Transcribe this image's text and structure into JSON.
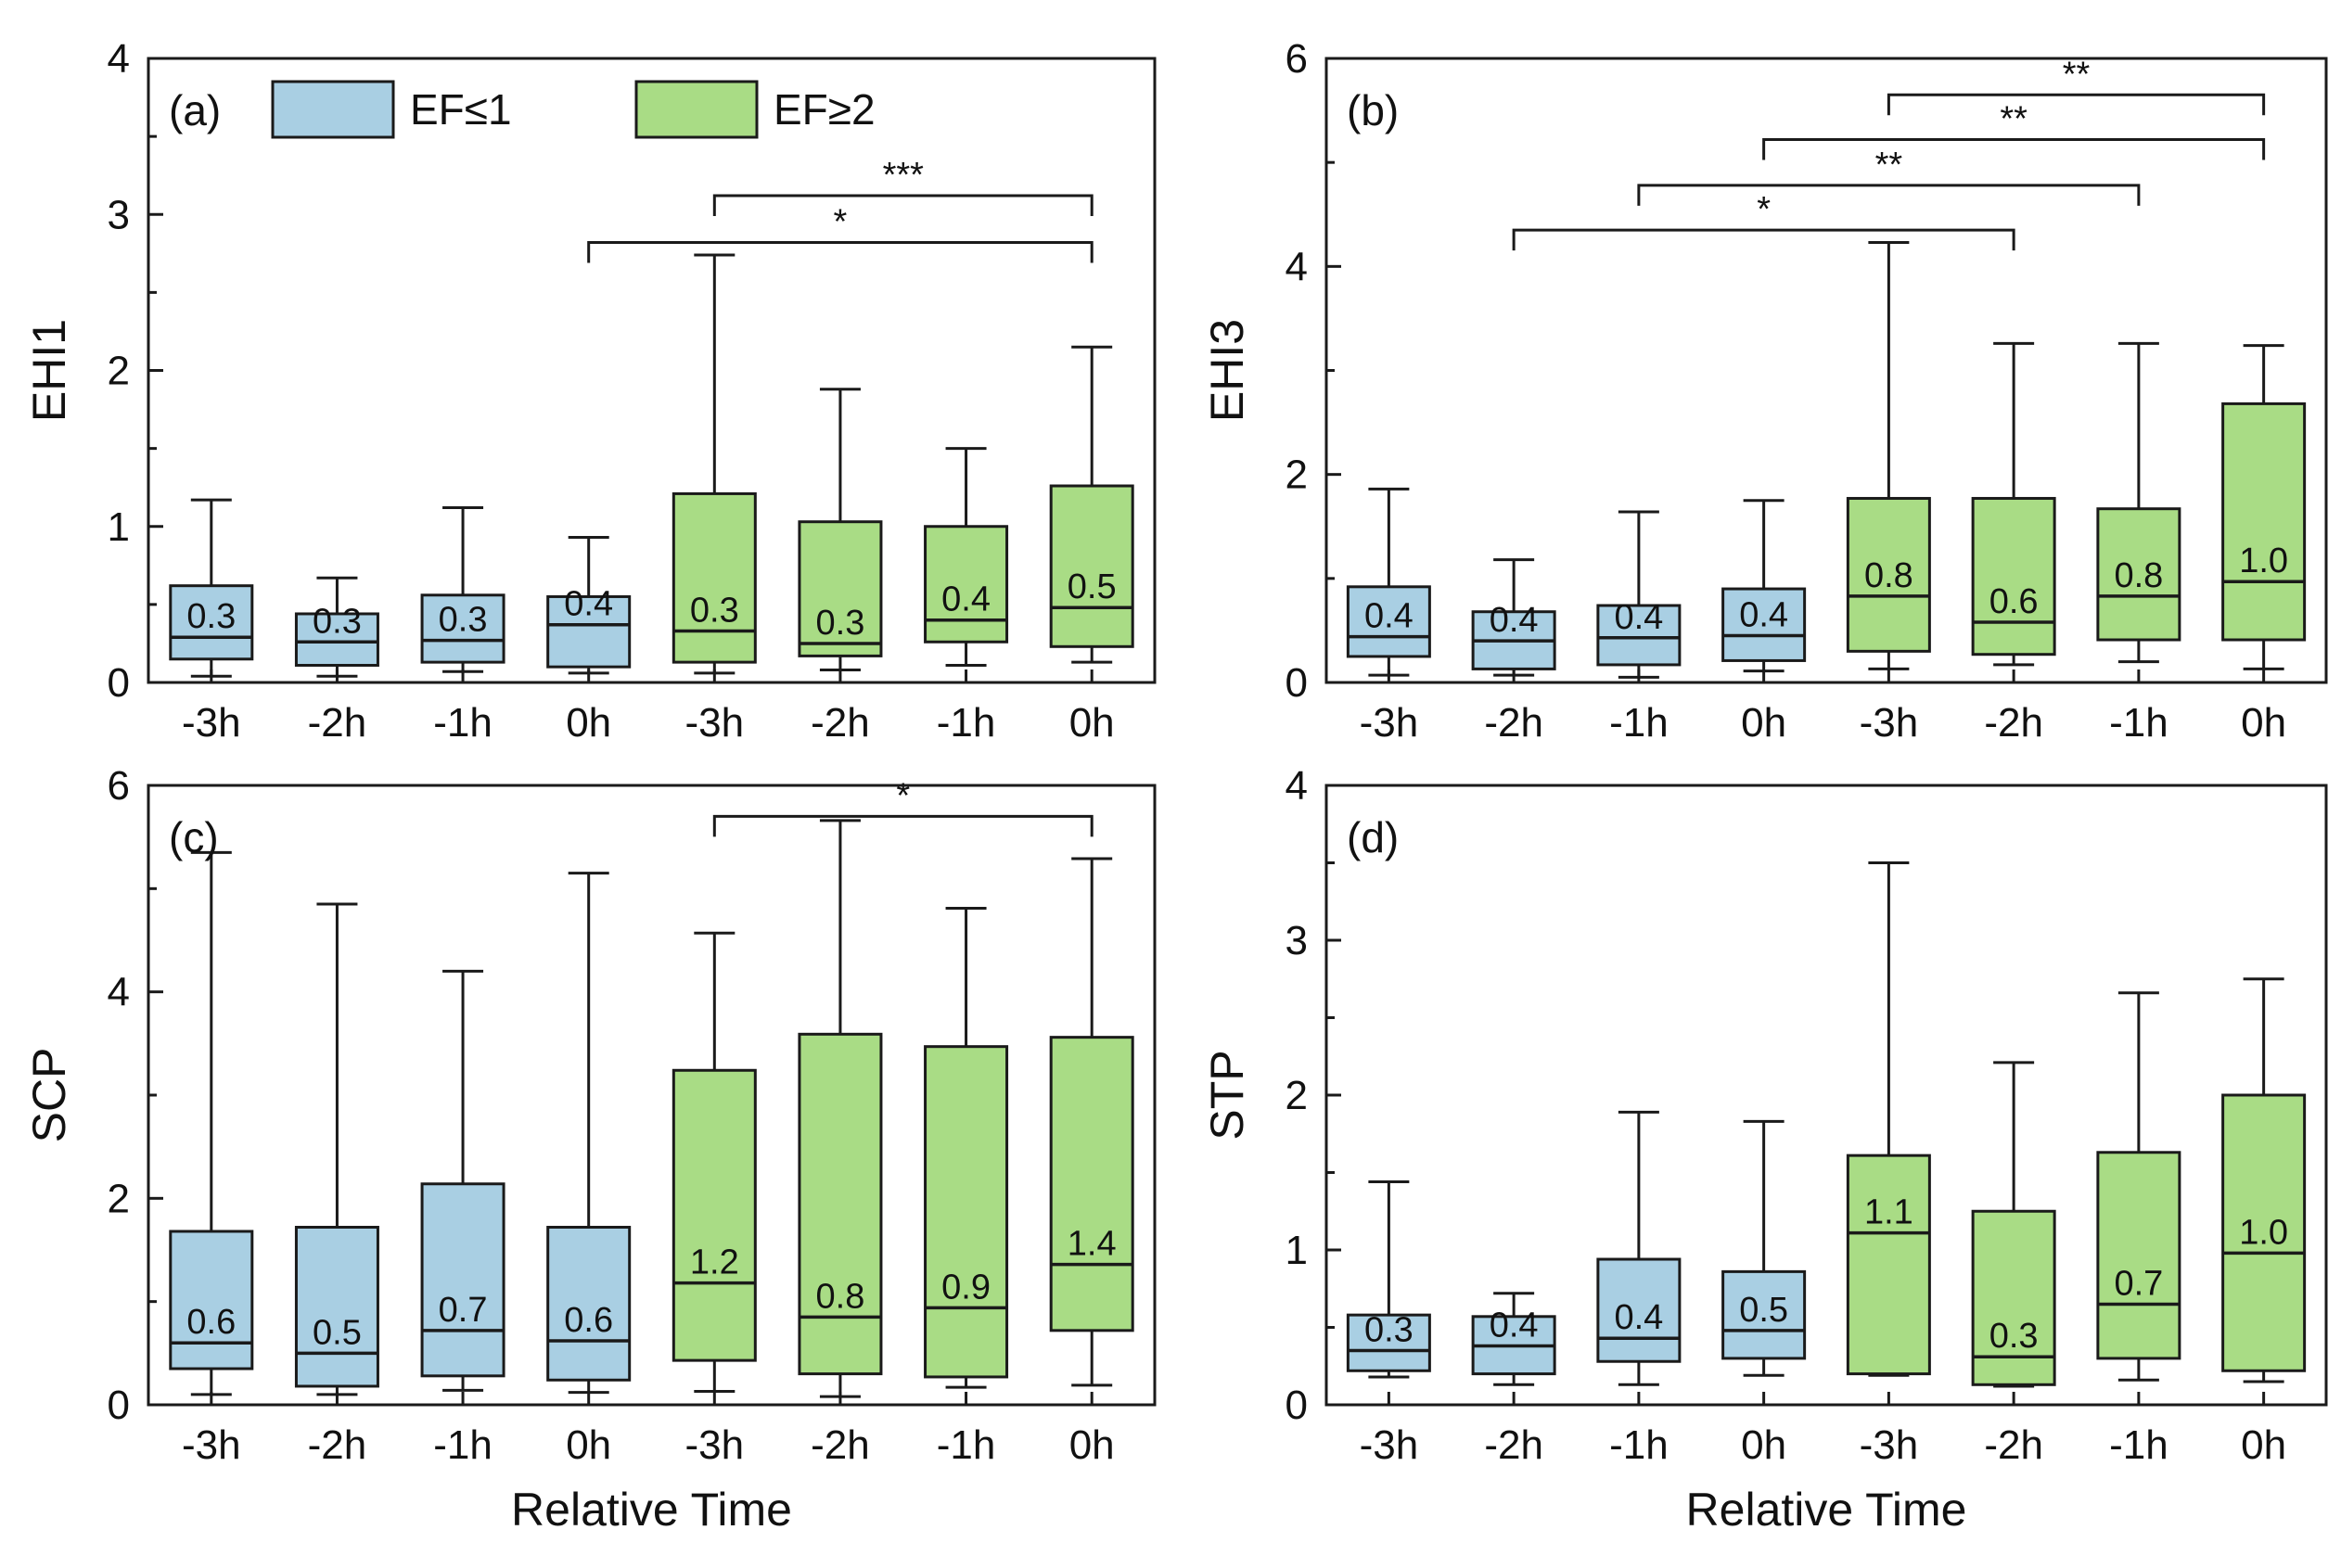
{
  "colors": {
    "ef_le1": "#a9cfe3",
    "ef_ge2": "#a9dc85",
    "stroke": "#1a1a1a"
  },
  "legend": {
    "ef_le1": "EF≤1",
    "ef_ge2": "EF≥2"
  },
  "chart_data": [
    {
      "type": "box",
      "panel_label": "(a)",
      "ylabel": "EHI1",
      "xlabel": "",
      "ylim": [
        0,
        4
      ],
      "yticks": [
        0,
        1,
        2,
        3,
        4
      ],
      "categories": [
        "-3h",
        "-2h",
        "-1h",
        "0h",
        "-3h",
        "-2h",
        "-1h",
        "0h"
      ],
      "groups": [
        "EF≤1",
        "EF≤1",
        "EF≤1",
        "EF≤1",
        "EF≥2",
        "EF≥2",
        "EF≥2",
        "EF≥2"
      ],
      "boxes": [
        {
          "min": 0.04,
          "q1": 0.15,
          "median": 0.29,
          "q3": 0.62,
          "max": 1.17,
          "label": "0.3"
        },
        {
          "min": 0.04,
          "q1": 0.11,
          "median": 0.26,
          "q3": 0.44,
          "max": 0.67,
          "label": "0.3"
        },
        {
          "min": 0.07,
          "q1": 0.13,
          "median": 0.27,
          "q3": 0.56,
          "max": 1.12,
          "label": "0.3"
        },
        {
          "min": 0.06,
          "q1": 0.1,
          "median": 0.37,
          "q3": 0.55,
          "max": 0.93,
          "label": "0.4"
        },
        {
          "min": 0.06,
          "q1": 0.13,
          "median": 0.33,
          "q3": 1.21,
          "max": 2.74,
          "label": "0.3"
        },
        {
          "min": 0.08,
          "q1": 0.17,
          "median": 0.25,
          "q3": 1.03,
          "max": 1.88,
          "label": "0.3"
        },
        {
          "min": 0.11,
          "q1": 0.26,
          "median": 0.4,
          "q3": 1.0,
          "max": 1.5,
          "label": "0.4"
        },
        {
          "min": 0.13,
          "q1": 0.23,
          "median": 0.48,
          "q3": 1.26,
          "max": 2.15,
          "label": "0.5"
        }
      ],
      "significance": [
        {
          "from": 3,
          "to": 7,
          "level": 2.82,
          "label": "*"
        },
        {
          "from": 4,
          "to": 7,
          "level": 3.12,
          "label": "***"
        }
      ]
    },
    {
      "type": "box",
      "panel_label": "(b)",
      "ylabel": "EHI3",
      "xlabel": "",
      "ylim": [
        0,
        6
      ],
      "yticks": [
        0,
        2,
        4,
        6
      ],
      "categories": [
        "-3h",
        "-2h",
        "-1h",
        "0h",
        "-3h",
        "-2h",
        "-1h",
        "0h"
      ],
      "groups": [
        "EF≤1",
        "EF≤1",
        "EF≤1",
        "EF≤1",
        "EF≥2",
        "EF≥2",
        "EF≥2",
        "EF≥2"
      ],
      "boxes": [
        {
          "min": 0.07,
          "q1": 0.25,
          "median": 0.44,
          "q3": 0.92,
          "max": 1.86,
          "label": "0.4"
        },
        {
          "min": 0.07,
          "q1": 0.13,
          "median": 0.4,
          "q3": 0.68,
          "max": 1.18,
          "label": "0.4"
        },
        {
          "min": 0.05,
          "q1": 0.17,
          "median": 0.43,
          "q3": 0.74,
          "max": 1.64,
          "label": "0.4"
        },
        {
          "min": 0.11,
          "q1": 0.21,
          "median": 0.45,
          "q3": 0.9,
          "max": 1.75,
          "label": "0.4"
        },
        {
          "min": 0.13,
          "q1": 0.3,
          "median": 0.83,
          "q3": 1.77,
          "max": 4.23,
          "label": "0.8"
        },
        {
          "min": 0.17,
          "q1": 0.27,
          "median": 0.58,
          "q3": 1.77,
          "max": 3.26,
          "label": "0.6"
        },
        {
          "min": 0.2,
          "q1": 0.41,
          "median": 0.83,
          "q3": 1.67,
          "max": 3.26,
          "label": "0.8"
        },
        {
          "min": 0.13,
          "q1": 0.41,
          "median": 0.97,
          "q3": 2.68,
          "max": 3.24,
          "label": "1.0"
        }
      ],
      "significance": [
        {
          "from": 1,
          "to": 5,
          "level": 4.35,
          "label": "*"
        },
        {
          "from": 2,
          "to": 6,
          "level": 4.78,
          "label": "**"
        },
        {
          "from": 3,
          "to": 7,
          "level": 5.22,
          "label": "**"
        },
        {
          "from": 4,
          "to": 7,
          "level": 5.65,
          "label": "**"
        }
      ]
    },
    {
      "type": "box",
      "panel_label": "(c)",
      "ylabel": "SCP",
      "xlabel": "Relative Time",
      "ylim": [
        0,
        6
      ],
      "yticks": [
        0,
        2,
        4,
        6
      ],
      "categories": [
        "-3h",
        "-2h",
        "-1h",
        "0h",
        "-3h",
        "-2h",
        "-1h",
        "0h"
      ],
      "groups": [
        "EF≤1",
        "EF≤1",
        "EF≤1",
        "EF≤1",
        "EF≥2",
        "EF≥2",
        "EF≥2",
        "EF≥2"
      ],
      "boxes": [
        {
          "min": 0.1,
          "q1": 0.35,
          "median": 0.6,
          "q3": 1.68,
          "max": 5.35,
          "label": "0.6"
        },
        {
          "min": 0.1,
          "q1": 0.18,
          "median": 0.5,
          "q3": 1.72,
          "max": 4.85,
          "label": "0.5"
        },
        {
          "min": 0.14,
          "q1": 0.28,
          "median": 0.72,
          "q3": 2.14,
          "max": 4.2,
          "label": "0.7"
        },
        {
          "min": 0.12,
          "q1": 0.24,
          "median": 0.62,
          "q3": 1.72,
          "max": 5.15,
          "label": "0.6"
        },
        {
          "min": 0.13,
          "q1": 0.43,
          "median": 1.18,
          "q3": 3.24,
          "max": 4.57,
          "label": "1.2"
        },
        {
          "min": 0.08,
          "q1": 0.3,
          "median": 0.85,
          "q3": 3.59,
          "max": 5.66,
          "label": "0.8"
        },
        {
          "min": 0.17,
          "q1": 0.27,
          "median": 0.94,
          "q3": 3.47,
          "max": 4.81,
          "label": "0.9"
        },
        {
          "min": 0.19,
          "q1": 0.72,
          "median": 1.36,
          "q3": 3.56,
          "max": 5.29,
          "label": "1.4"
        }
      ],
      "significance": [
        {
          "from": 4,
          "to": 7,
          "level": 5.7,
          "label": "*"
        }
      ]
    },
    {
      "type": "box",
      "panel_label": "(d)",
      "ylabel": "STP",
      "xlabel": "Relative Time",
      "ylim": [
        0,
        4
      ],
      "yticks": [
        0,
        1,
        2,
        3,
        4
      ],
      "categories": [
        "-3h",
        "-2h",
        "-1h",
        "0h",
        "-3h",
        "-2h",
        "-1h",
        "0h"
      ],
      "groups": [
        "EF≤1",
        "EF≤1",
        "EF≤1",
        "EF≤1",
        "EF≥2",
        "EF≥2",
        "EF≥2",
        "EF≥2"
      ],
      "boxes": [
        {
          "min": 0.18,
          "q1": 0.22,
          "median": 0.35,
          "q3": 0.58,
          "max": 1.44,
          "label": "0.3"
        },
        {
          "min": 0.13,
          "q1": 0.2,
          "median": 0.38,
          "q3": 0.57,
          "max": 0.72,
          "label": "0.4"
        },
        {
          "min": 0.13,
          "q1": 0.28,
          "median": 0.43,
          "q3": 0.94,
          "max": 1.89,
          "label": "0.4"
        },
        {
          "min": 0.19,
          "q1": 0.3,
          "median": 0.48,
          "q3": 0.86,
          "max": 1.83,
          "label": "0.5"
        },
        {
          "min": 0.19,
          "q1": 0.2,
          "median": 1.11,
          "q3": 1.61,
          "max": 3.5,
          "label": "1.1"
        },
        {
          "min": 0.12,
          "q1": 0.13,
          "median": 0.31,
          "q3": 1.25,
          "max": 2.21,
          "label": "0.3"
        },
        {
          "min": 0.16,
          "q1": 0.3,
          "median": 0.65,
          "q3": 1.63,
          "max": 2.66,
          "label": "0.7"
        },
        {
          "min": 0.15,
          "q1": 0.22,
          "median": 0.98,
          "q3": 2.0,
          "max": 2.75,
          "label": "1.0"
        }
      ],
      "significance": []
    }
  ]
}
